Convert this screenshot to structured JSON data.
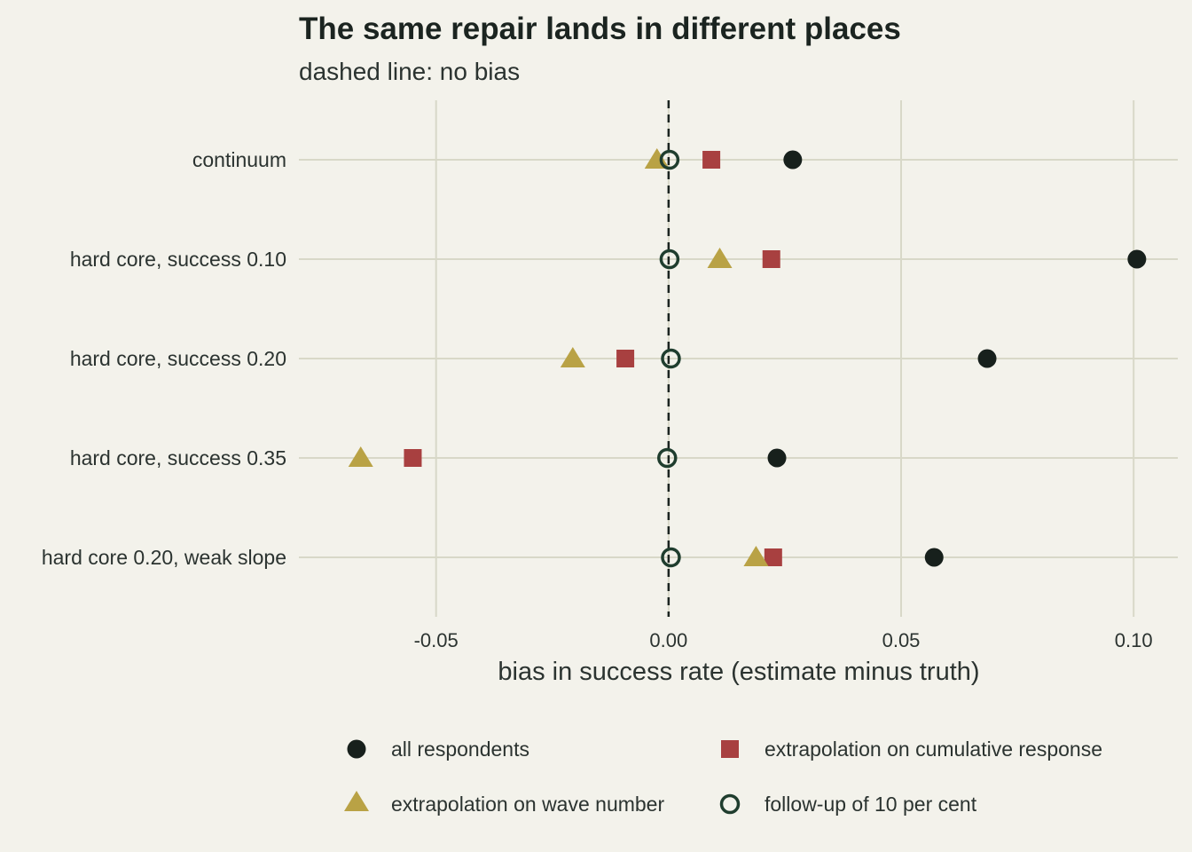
{
  "chart_data": {
    "type": "scatter",
    "title": "The same repair lands in different places",
    "subtitle": "dashed line: no bias",
    "xlabel": "bias in success rate (estimate minus truth)",
    "ylabel": "",
    "xlim": [
      -0.0795,
      0.1095
    ],
    "xticks": [
      -0.05,
      0.0,
      0.05,
      0.1
    ],
    "xtick_labels": [
      "-0.05",
      "0.00",
      "0.05",
      "0.10"
    ],
    "reference_line": {
      "x": 0.0,
      "style": "dashed"
    },
    "grid": true,
    "legend_position": "bottom",
    "categories": [
      "continuum",
      "hard core, success 0.10",
      "hard core, success 0.20",
      "hard core, success 0.35",
      "hard core 0.20, weak slope"
    ],
    "series": [
      {
        "name": "all respondents",
        "marker": "filled-circle",
        "color": "#17201c",
        "values": [
          0.0267,
          0.1007,
          0.0685,
          0.0233,
          0.0571
        ]
      },
      {
        "name": "extrapolation on cumulative response",
        "marker": "square",
        "color": "#a84040",
        "values": [
          0.0092,
          0.0221,
          -0.0093,
          -0.055,
          0.0225
        ]
      },
      {
        "name": "extrapolation on wave number",
        "marker": "triangle",
        "color": "#b9a245",
        "values": [
          -0.0025,
          0.011,
          -0.0206,
          -0.0662,
          0.0188
        ]
      },
      {
        "name": "follow-up of 10 per cent",
        "marker": "open-circle",
        "color": "#1f3d2e",
        "values": [
          0.0002,
          0.0002,
          0.0005,
          -0.0003,
          0.0005
        ]
      }
    ]
  }
}
